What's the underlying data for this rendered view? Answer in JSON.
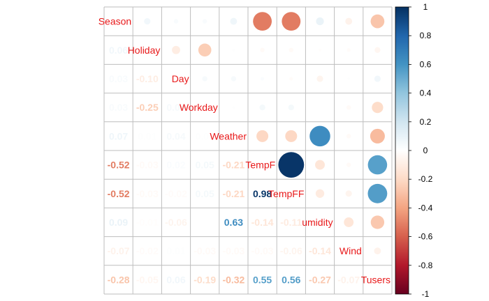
{
  "chart_data": {
    "type": "heatmap",
    "style": "corrplot-mixed",
    "variables": [
      "Season",
      "Holiday",
      "Day",
      "Workday",
      "Weather",
      "TempF",
      "TempFF",
      "Humidity",
      "Wind",
      "Tusers"
    ],
    "diagonal_labels": [
      "Season",
      "Holiday",
      "Day",
      "Workday",
      "Weather",
      "TempF",
      "TempFF",
      "umidity",
      "Wind",
      "Tusers"
    ],
    "matrix": [
      [
        1.0,
        0.06,
        0.03,
        0.03,
        0.07,
        -0.52,
        -0.52,
        0.09,
        -0.07,
        -0.28
      ],
      [
        0.06,
        1.0,
        -0.1,
        -0.25,
        0.01,
        -0.03,
        -0.03,
        -0.01,
        -0.02,
        -0.05
      ],
      [
        0.03,
        -0.1,
        1.0,
        0.04,
        0.04,
        0.02,
        -0.02,
        -0.06,
        0.01,
        0.06
      ],
      [
        0.03,
        -0.25,
        0.04,
        1.0,
        0.01,
        0.05,
        0.05,
        0.0,
        -0.03,
        -0.19
      ],
      [
        0.07,
        0.01,
        0.04,
        0.01,
        1.0,
        -0.21,
        -0.21,
        0.63,
        -0.03,
        -0.32
      ],
      [
        -0.52,
        -0.03,
        0.02,
        0.05,
        -0.21,
        1.0,
        0.98,
        -0.14,
        -0.03,
        0.55
      ],
      [
        -0.52,
        -0.03,
        -0.02,
        0.05,
        -0.21,
        0.98,
        1.0,
        -0.11,
        -0.06,
        0.56
      ],
      [
        0.09,
        -0.01,
        -0.06,
        0.0,
        0.63,
        -0.14,
        -0.11,
        1.0,
        -0.14,
        -0.27
      ],
      [
        -0.07,
        -0.02,
        0.01,
        -0.03,
        -0.03,
        -0.03,
        -0.06,
        -0.14,
        1.0,
        -0.07
      ],
      [
        -0.28,
        -0.05,
        0.06,
        -0.19,
        -0.32,
        0.55,
        0.56,
        -0.27,
        -0.07,
        1.0
      ]
    ],
    "upper": "circle",
    "lower": "number",
    "colorbar": {
      "range": [
        -1,
        1
      ],
      "ticks": [
        "1",
        "0.8",
        "0.6",
        "0.4",
        "0.2",
        "0",
        "-0.2",
        "-0.4",
        "-0.6",
        "-0.8",
        "-1"
      ],
      "placement": "right"
    },
    "colors": {
      "negative_end": "#67001F",
      "positive_end": "#053061",
      "label_color": "#E8191A",
      "grid_color": "#BEBEBE"
    }
  }
}
